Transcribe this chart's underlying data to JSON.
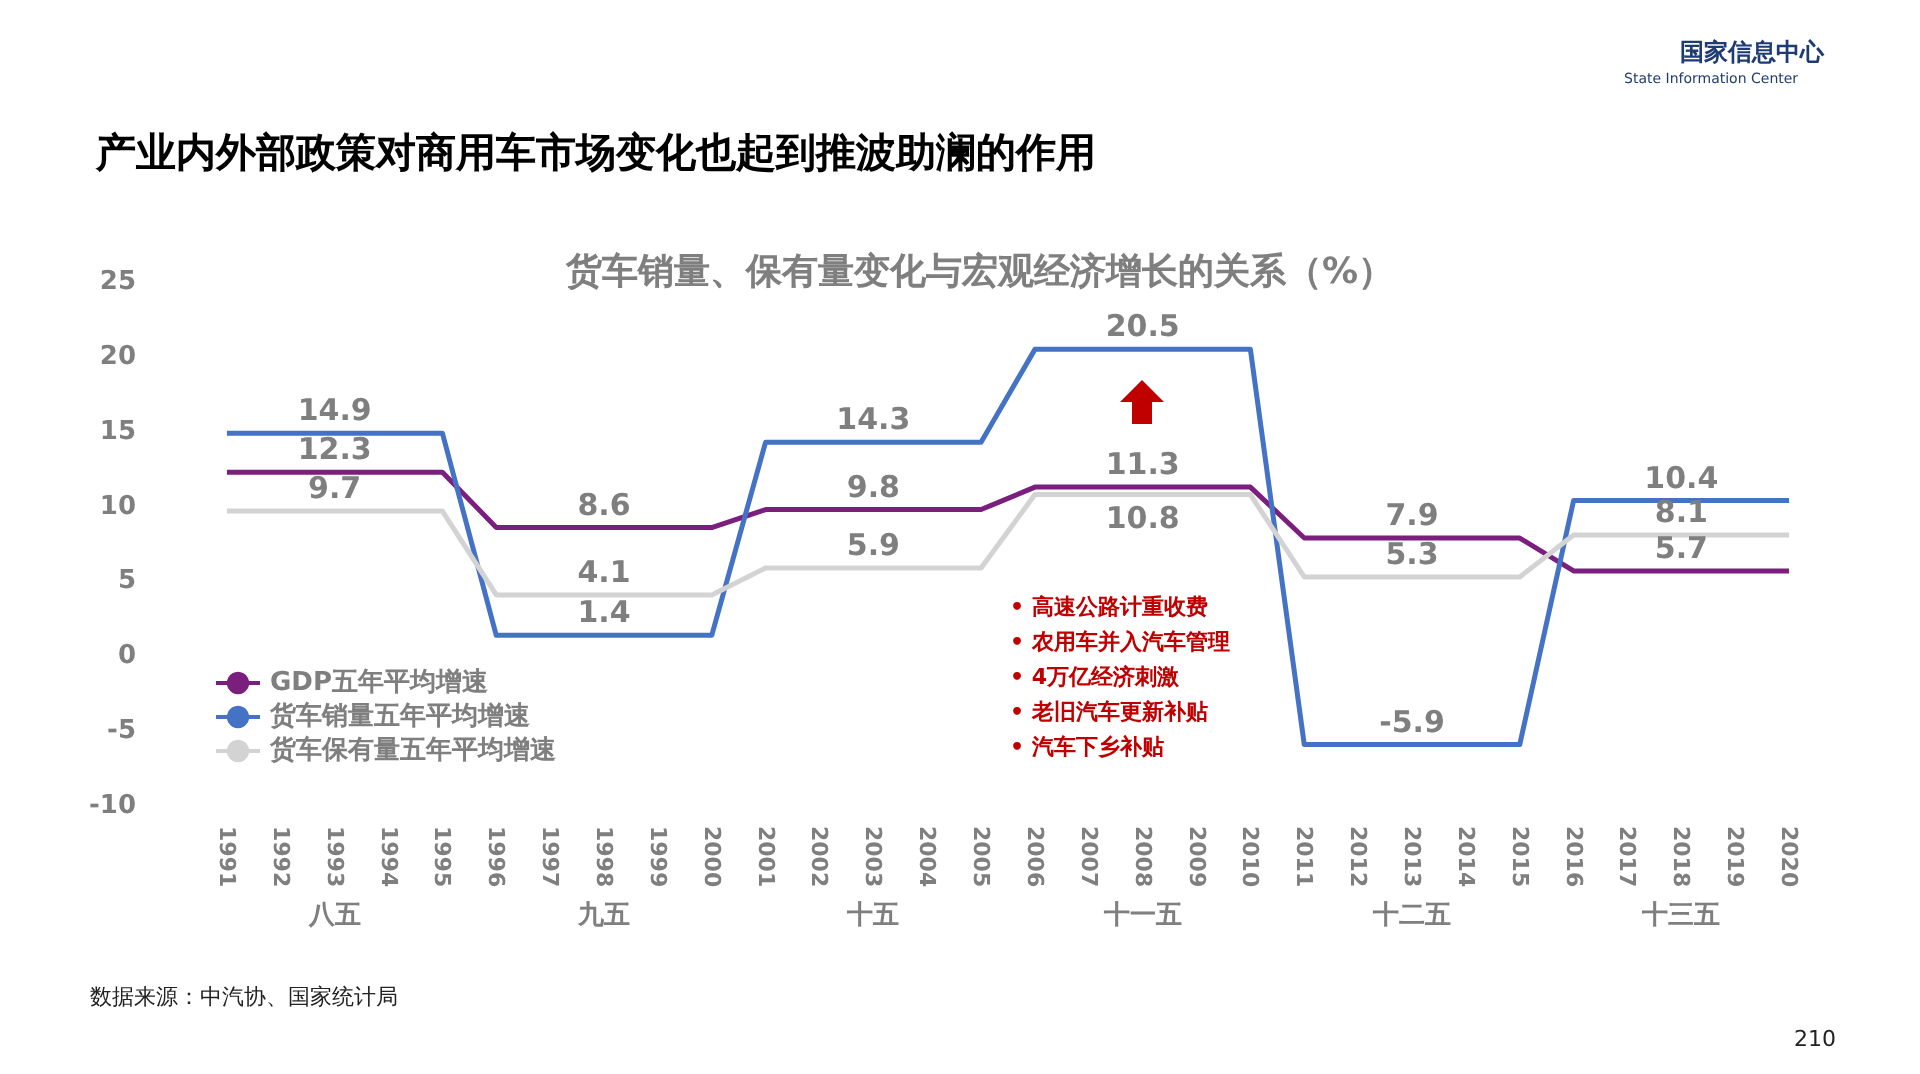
{
  "chart_data": {
    "type": "line",
    "title": "产业内外部政策对商用车市场变化也起到推波助澜的作用",
    "subtitle": "货车销量、保有量变化与宏观经济增长的关系（%）",
    "categories": [
      "1991",
      "1992",
      "1993",
      "1994",
      "1995",
      "1996",
      "1997",
      "1998",
      "1999",
      "2000",
      "2001",
      "2002",
      "2003",
      "2004",
      "2005",
      "2006",
      "2007",
      "2008",
      "2009",
      "2010",
      "2011",
      "2012",
      "2013",
      "2014",
      "2015",
      "2016",
      "2017",
      "2018",
      "2019",
      "2020"
    ],
    "series": [
      {
        "name": "GDP五年平均增速",
        "color": "#7b1f7e",
        "values": [
          12.3,
          12.3,
          12.3,
          12.3,
          12.3,
          8.6,
          8.6,
          8.6,
          8.6,
          8.6,
          9.8,
          9.8,
          9.8,
          9.8,
          9.8,
          11.3,
          11.3,
          11.3,
          11.3,
          11.3,
          7.9,
          7.9,
          7.9,
          7.9,
          7.9,
          5.7,
          5.7,
          5.7,
          5.7,
          5.7
        ],
        "value_labels": [
          null,
          null,
          "12.3",
          null,
          null,
          null,
          null,
          "8.6",
          null,
          null,
          null,
          null,
          "9.8",
          null,
          null,
          null,
          null,
          "11.3",
          null,
          null,
          null,
          null,
          "7.9",
          null,
          null,
          null,
          null,
          "5.7",
          null,
          null
        ]
      },
      {
        "name": "货车销量五年平均增速",
        "color": "#4472c4",
        "values": [
          14.9,
          14.9,
          14.9,
          14.9,
          14.9,
          1.4,
          1.4,
          1.4,
          1.4,
          1.4,
          14.3,
          14.3,
          14.3,
          14.3,
          14.3,
          20.5,
          20.5,
          20.5,
          20.5,
          20.5,
          -5.9,
          -5.9,
          -5.9,
          -5.9,
          -5.9,
          10.4,
          10.4,
          10.4,
          10.4,
          10.4
        ],
        "value_labels": [
          null,
          null,
          "14.9",
          null,
          null,
          null,
          null,
          "1.4",
          null,
          null,
          null,
          null,
          "14.3",
          null,
          null,
          null,
          null,
          "20.5",
          null,
          null,
          null,
          null,
          "-5.9",
          null,
          null,
          null,
          null,
          "10.4",
          null,
          null
        ]
      },
      {
        "name": "货车保有量五年平均增速",
        "color": "#d3d3d3",
        "values": [
          9.7,
          9.7,
          9.7,
          9.7,
          9.7,
          4.1,
          4.1,
          4.1,
          4.1,
          4.1,
          5.9,
          5.9,
          5.9,
          5.9,
          5.9,
          10.8,
          10.8,
          10.8,
          10.8,
          10.8,
          5.3,
          5.3,
          5.3,
          5.3,
          5.3,
          8.1,
          8.1,
          8.1,
          8.1,
          8.1
        ],
        "value_labels": [
          null,
          null,
          "9.7",
          null,
          null,
          null,
          null,
          "4.1",
          null,
          null,
          null,
          null,
          "5.9",
          null,
          null,
          null,
          null,
          "10.8",
          null,
          null,
          null,
          null,
          "5.3",
          null,
          null,
          null,
          null,
          "8.1",
          null,
          null
        ]
      }
    ],
    "ylim": [
      -10,
      25
    ],
    "yticks": [
      -10,
      -5,
      0,
      5,
      10,
      15,
      20,
      25
    ],
    "grid": false,
    "legend": "bottom left",
    "marker": "none",
    "line_style": "solid",
    "annotations": [
      "国家信息中心",
      "State Information Center",
      "• 高速公路计重收费",
      "• 农用车并入汽车管理",
      "• 4万亿经济刺激",
      "• 老旧汽车更新补贴",
      "• 汽车下乡补贴",
      "数据来源：中汽协、国家统计局",
      "210",
      "八五",
      "九五",
      "十五",
      "十一五",
      "十二五",
      "十三五"
    ]
  }
}
